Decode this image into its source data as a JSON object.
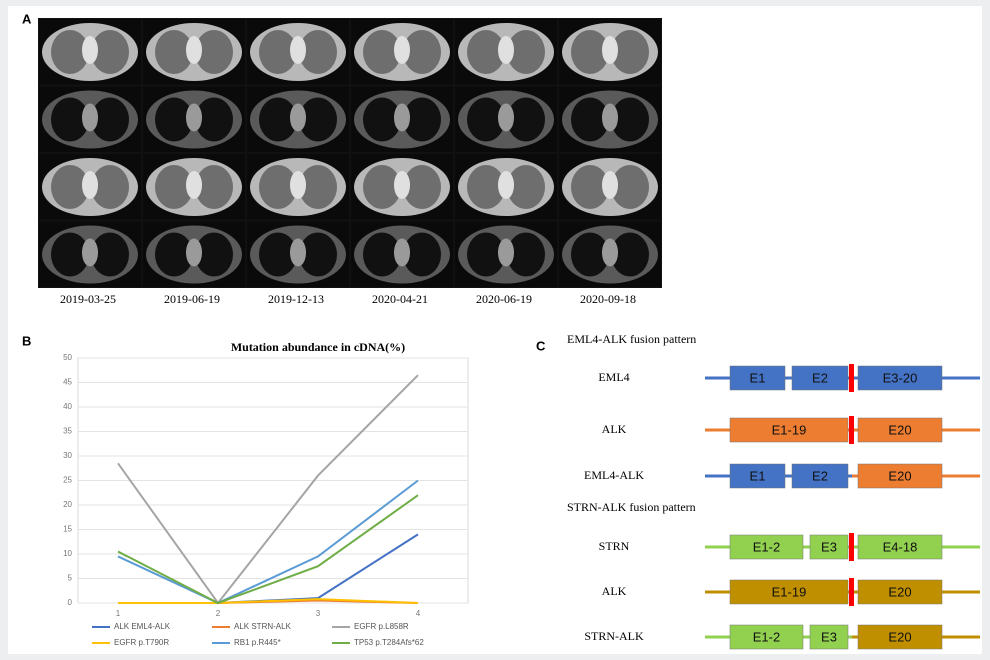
{
  "panels": {
    "a": "A",
    "b": "B",
    "c": "C"
  },
  "ct_dates": [
    "2019-03-25",
    "2019-06-19",
    "2019-12-13",
    "2020-04-21",
    "2020-06-19",
    "2020-09-18"
  ],
  "chart_data": {
    "type": "line",
    "title": "Mutation abundance in cDNA(%)",
    "categories": [
      "1",
      "2",
      "3",
      "4"
    ],
    "ylim": [
      0,
      50
    ],
    "yticks": [
      0,
      5,
      10,
      15,
      20,
      25,
      30,
      35,
      40,
      45,
      50
    ],
    "grid": true,
    "series": [
      {
        "name": "ALK EML4-ALK",
        "color": "#4472c4",
        "values": [
          0,
          0,
          1,
          14
        ]
      },
      {
        "name": "ALK STRN-ALK",
        "color": "#ed7d31",
        "values": [
          0,
          0,
          0.5,
          0
        ]
      },
      {
        "name": "EGFR p.L858R",
        "color": "#a5a5a5",
        "values": [
          28.5,
          0,
          26,
          46.5
        ]
      },
      {
        "name": "EGFR p.T790R",
        "color": "#ffc000",
        "values": [
          0,
          0,
          0.8,
          0
        ]
      },
      {
        "name": "RB1 p.R445*",
        "color": "#5b9bd5",
        "values": [
          9.5,
          0,
          9.5,
          25
        ]
      },
      {
        "name": "TP53 p.T284Afs*62",
        "color": "#70ad47",
        "values": [
          10.5,
          0,
          7.5,
          22
        ]
      }
    ]
  },
  "fusion": {
    "groups": [
      {
        "title": "EML4-ALK fusion pattern",
        "rows": [
          {
            "name": "EML4",
            "segments": [
              "E1",
              "E2",
              "E3-20"
            ]
          },
          {
            "name": "ALK",
            "segments": [
              "E1-19",
              "E20"
            ]
          },
          {
            "name": "EML4-ALK",
            "segments": [
              "E1",
              "E2",
              "E20"
            ]
          }
        ]
      },
      {
        "title": "STRN-ALK fusion pattern",
        "rows": [
          {
            "name": "STRN",
            "segments": [
              "E1-2",
              "E3",
              "E4-18"
            ]
          },
          {
            "name": "ALK",
            "segments": [
              "E1-19",
              "E20"
            ]
          },
          {
            "name": "STRN-ALK",
            "segments": [
              "E1-2",
              "E3",
              "E20"
            ]
          }
        ]
      }
    ]
  }
}
